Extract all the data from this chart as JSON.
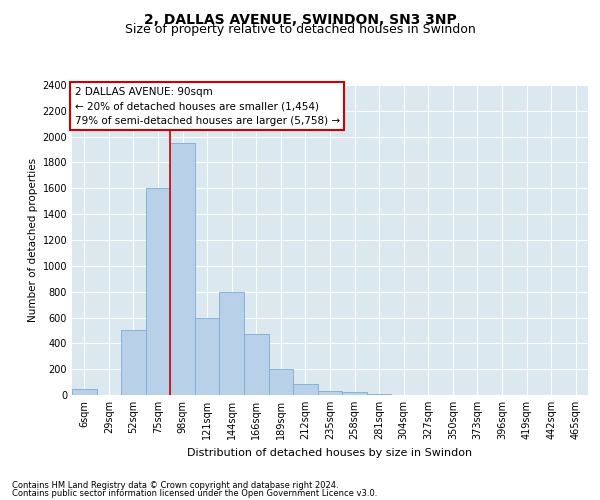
{
  "title": "2, DALLAS AVENUE, SWINDON, SN3 3NP",
  "subtitle": "Size of property relative to detached houses in Swindon",
  "xlabel": "Distribution of detached houses by size in Swindon",
  "ylabel": "Number of detached properties",
  "footer_line1": "Contains HM Land Registry data © Crown copyright and database right 2024.",
  "footer_line2": "Contains public sector information licensed under the Open Government Licence v3.0.",
  "categories": [
    "6sqm",
    "29sqm",
    "52sqm",
    "75sqm",
    "98sqm",
    "121sqm",
    "144sqm",
    "166sqm",
    "189sqm",
    "212sqm",
    "235sqm",
    "258sqm",
    "281sqm",
    "304sqm",
    "327sqm",
    "350sqm",
    "373sqm",
    "396sqm",
    "419sqm",
    "442sqm",
    "465sqm"
  ],
  "values": [
    50,
    0,
    500,
    1600,
    1950,
    600,
    800,
    475,
    200,
    85,
    30,
    25,
    10,
    0,
    0,
    0,
    0,
    0,
    0,
    0,
    0
  ],
  "bar_color": "#b8d0e8",
  "bar_edge_color": "#7aadd4",
  "vline_index": 3.5,
  "vline_color": "#cc0000",
  "annotation_line1": "2 DALLAS AVENUE: 90sqm",
  "annotation_line2": "← 20% of detached houses are smaller (1,454)",
  "annotation_line3": "79% of semi-detached houses are larger (5,758) →",
  "ylim": [
    0,
    2400
  ],
  "yticks": [
    0,
    200,
    400,
    600,
    800,
    1000,
    1200,
    1400,
    1600,
    1800,
    2000,
    2200,
    2400
  ],
  "bg_color": "#dce8f0",
  "title_fontsize": 10,
  "subtitle_fontsize": 9,
  "axis_label_fontsize": 8,
  "tick_fontsize": 7,
  "ylabel_fontsize": 7.5
}
